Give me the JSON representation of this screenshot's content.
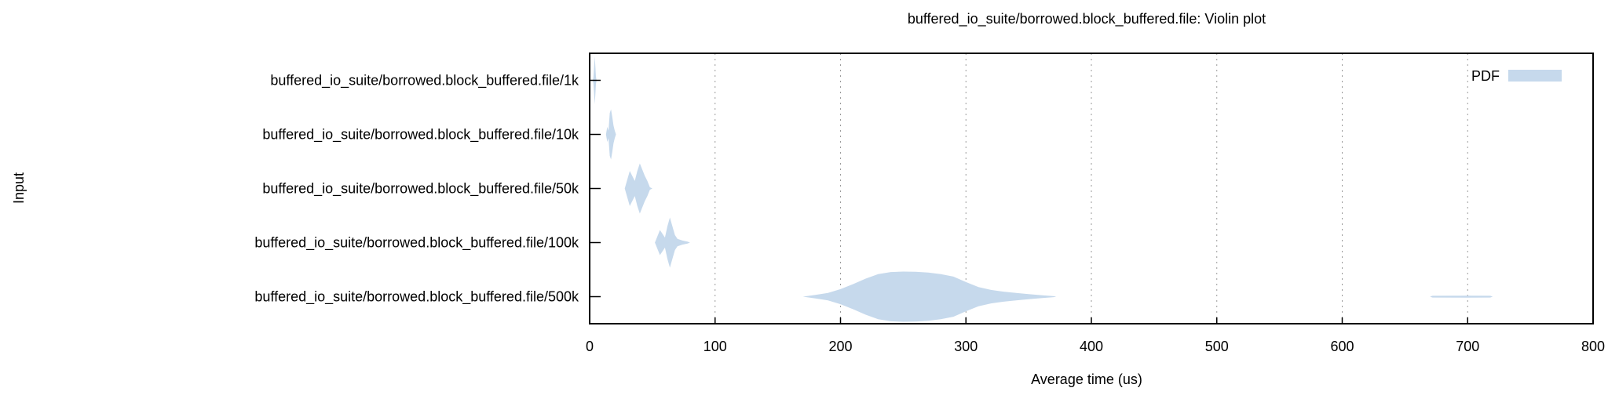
{
  "chart_data": {
    "type": "violin",
    "title": "buffered_io_suite/borrowed.block_buffered.file: Violin plot",
    "xlabel": "Average time (us)",
    "ylabel": "Input",
    "xlim": [
      0,
      800
    ],
    "xticks": [
      "0",
      "100",
      "200",
      "300",
      "400",
      "500",
      "600",
      "700",
      "800"
    ],
    "grid": "vertical dotted",
    "legend": {
      "label": "PDF",
      "position": "top-right"
    },
    "colors": {
      "violin": "#c6d9ec"
    },
    "categories": [
      "buffered_io_suite/borrowed.block_buffered.file/1k",
      "buffered_io_suite/borrowed.block_buffered.file/10k",
      "buffered_io_suite/borrowed.block_buffered.file/50k",
      "buffered_io_suite/borrowed.block_buffered.file/100k",
      "buffered_io_suite/borrowed.block_buffered.file/500k"
    ],
    "series": [
      {
        "category": "buffered_io_suite/borrowed.block_buffered.file/1k",
        "density": [
          [
            2.5,
            0.0
          ],
          [
            3,
            0.12
          ],
          [
            3.5,
            0.5
          ],
          [
            4,
            0.95
          ],
          [
            4.5,
            0.6
          ],
          [
            5,
            0.15
          ],
          [
            5.5,
            0.0
          ]
        ]
      },
      {
        "category": "buffered_io_suite/borrowed.block_buffered.file/10k",
        "density": [
          [
            13,
            0.0
          ],
          [
            14,
            0.3
          ],
          [
            15,
            0.15
          ],
          [
            16,
            0.85
          ],
          [
            17,
            1.0
          ],
          [
            18,
            0.7
          ],
          [
            19,
            0.35
          ],
          [
            20,
            0.15
          ],
          [
            21,
            0.0
          ]
        ]
      },
      {
        "category": "buffered_io_suite/borrowed.block_buffered.file/50k",
        "density": [
          [
            28,
            0.0
          ],
          [
            30,
            0.35
          ],
          [
            32,
            0.7
          ],
          [
            34,
            0.5
          ],
          [
            36,
            0.3
          ],
          [
            38,
            0.7
          ],
          [
            40,
            1.0
          ],
          [
            42,
            0.75
          ],
          [
            44,
            0.5
          ],
          [
            46,
            0.3
          ],
          [
            48,
            0.05
          ],
          [
            50,
            0.0
          ]
        ]
      },
      {
        "category": "buffered_io_suite/borrowed.block_buffered.file/100k",
        "density": [
          [
            52,
            0.0
          ],
          [
            54,
            0.25
          ],
          [
            56,
            0.5
          ],
          [
            58,
            0.35
          ],
          [
            60,
            0.2
          ],
          [
            62,
            0.65
          ],
          [
            64,
            1.0
          ],
          [
            66,
            0.65
          ],
          [
            68,
            0.3
          ],
          [
            70,
            0.15
          ],
          [
            74,
            0.08
          ],
          [
            78,
            0.04
          ],
          [
            80,
            0.0
          ]
        ]
      },
      {
        "category": "buffered_io_suite/borrowed.block_buffered.file/500k",
        "density": [
          [
            170,
            0.0
          ],
          [
            180,
            0.07
          ],
          [
            190,
            0.15
          ],
          [
            200,
            0.3
          ],
          [
            210,
            0.5
          ],
          [
            220,
            0.72
          ],
          [
            230,
            0.9
          ],
          [
            240,
            0.98
          ],
          [
            250,
            1.0
          ],
          [
            260,
            0.99
          ],
          [
            270,
            0.96
          ],
          [
            280,
            0.9
          ],
          [
            290,
            0.8
          ],
          [
            300,
            0.58
          ],
          [
            310,
            0.38
          ],
          [
            320,
            0.27
          ],
          [
            330,
            0.2
          ],
          [
            340,
            0.15
          ],
          [
            350,
            0.1
          ],
          [
            360,
            0.06
          ],
          [
            370,
            0.02
          ],
          [
            372,
            0.0
          ],
          [
            670,
            0.0
          ],
          [
            672,
            0.035
          ],
          [
            700,
            0.04
          ],
          [
            718,
            0.035
          ],
          [
            720,
            0.0
          ]
        ]
      }
    ]
  }
}
